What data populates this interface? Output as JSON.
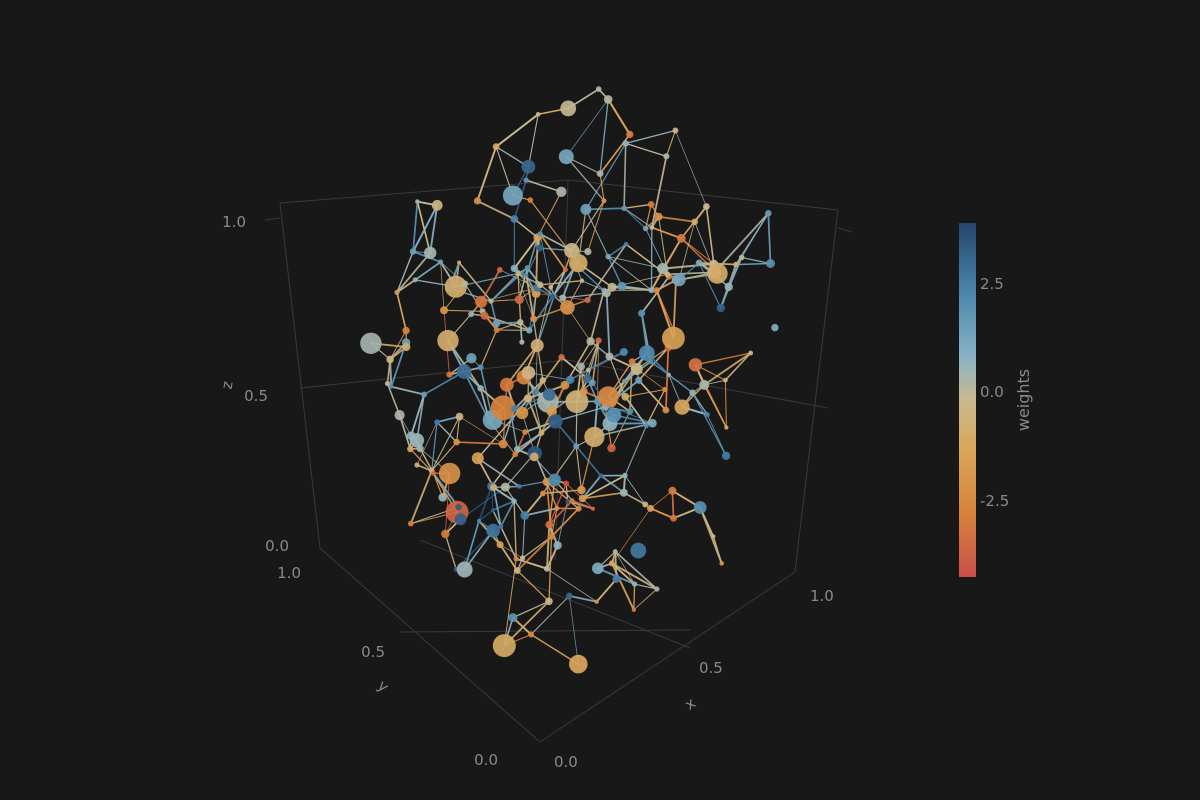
{
  "chart_data": {
    "type": "scatter3d-network",
    "axes": {
      "x": {
        "label": "x",
        "range": [
          0,
          1
        ],
        "ticks": [
          "0.0",
          "0.5",
          "1.0"
        ]
      },
      "y": {
        "label": "y",
        "range": [
          0,
          1
        ],
        "ticks": [
          "0.0",
          "0.5",
          "1.0"
        ]
      },
      "z": {
        "label": "z",
        "range": [
          0,
          1
        ],
        "ticks": [
          "0.0",
          "0.5",
          "1.0"
        ]
      }
    },
    "colorbar": {
      "title": "weights",
      "range": [
        -4.2,
        3.9
      ],
      "ticks": [
        "2.5",
        "0.0",
        "-2.5"
      ],
      "tick_values": [
        2.5,
        0.0,
        -2.5
      ],
      "colorscale": [
        "#c94f4b",
        "#d7823c",
        "#d9a65a",
        "#c9b98f",
        "#8ab3c4",
        "#4b87ad",
        "#24456e"
      ]
    },
    "grid": true,
    "node_count": 260,
    "edge_count": 720
  }
}
